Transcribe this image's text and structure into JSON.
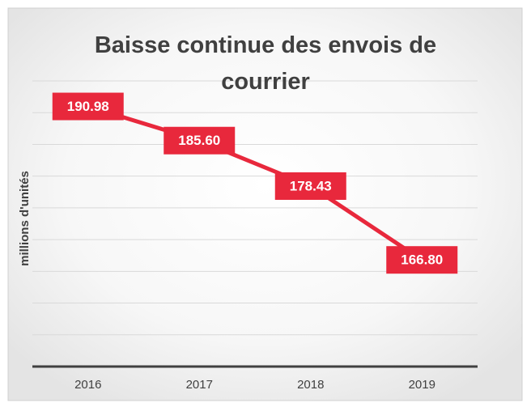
{
  "chart_data": {
    "type": "line",
    "title": "Baisse continue des envois de courrier",
    "y_label": "millions d'unités",
    "categories": [
      "2016",
      "2017",
      "2018",
      "2019"
    ],
    "series": [
      {
        "name": "Envois de courrier",
        "color": "#e8283c",
        "values": [
          190.98,
          185.6,
          178.43,
          166.8
        ],
        "value_labels": [
          "190.98",
          "185.60",
          "178.43",
          "166.80"
        ]
      }
    ],
    "ylim": [
      150,
      195
    ],
    "yticks": [
      150,
      155,
      160,
      165,
      170,
      175,
      180,
      185,
      190,
      195
    ],
    "grid": true
  }
}
